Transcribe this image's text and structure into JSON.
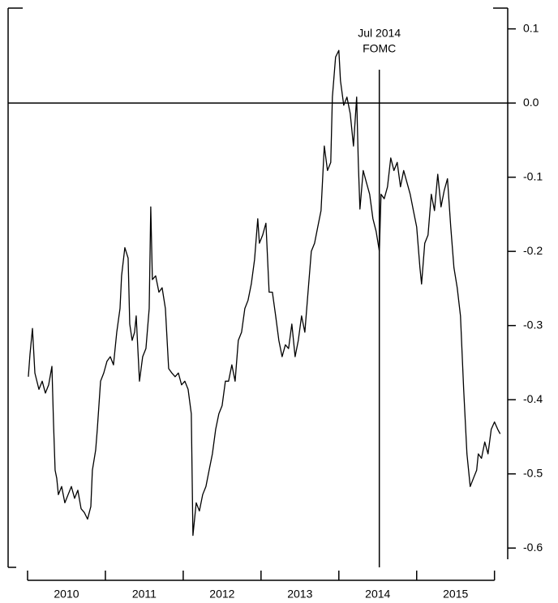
{
  "chart_data": {
    "type": "line",
    "x": [
      2010.01,
      2010.031,
      2010.063,
      2010.094,
      2010.146,
      2010.188,
      2010.229,
      2010.271,
      2010.313,
      2010.333,
      2010.354,
      2010.375,
      2010.396,
      2010.438,
      2010.479,
      2010.521,
      2010.563,
      2010.604,
      2010.646,
      2010.688,
      2010.729,
      2010.771,
      2010.813,
      2010.833,
      2010.875,
      2010.896,
      2010.938,
      2010.979,
      2011.021,
      2011.063,
      2011.104,
      2011.146,
      2011.188,
      2011.208,
      2011.25,
      2011.292,
      2011.313,
      2011.344,
      2011.375,
      2011.396,
      2011.438,
      2011.479,
      2011.521,
      2011.563,
      2011.583,
      2011.604,
      2011.646,
      2011.688,
      2011.729,
      2011.771,
      2011.813,
      2011.854,
      2011.896,
      2011.938,
      2011.979,
      2012.021,
      2012.063,
      2012.104,
      2012.125,
      2012.167,
      2012.208,
      2012.25,
      2012.292,
      2012.333,
      2012.375,
      2012.417,
      2012.458,
      2012.5,
      2012.542,
      2012.583,
      2012.625,
      2012.667,
      2012.708,
      2012.75,
      2012.792,
      2012.833,
      2012.875,
      2012.917,
      2012.958,
      2012.979,
      2013.021,
      2013.063,
      2013.104,
      2013.146,
      2013.188,
      2013.229,
      2013.271,
      2013.313,
      2013.354,
      2013.396,
      2013.438,
      2013.479,
      2013.521,
      2013.563,
      2013.604,
      2013.646,
      2013.688,
      2013.729,
      2013.771,
      2013.813,
      2013.854,
      2013.896,
      2013.917,
      2013.958,
      2014.0,
      2014.021,
      2014.063,
      2014.104,
      2014.146,
      2014.188,
      2014.229,
      2014.25,
      2014.271,
      2014.313,
      2014.354,
      2014.396,
      2014.438,
      2014.479,
      2014.521,
      2014.542,
      2014.583,
      2014.625,
      2014.667,
      2014.708,
      2014.75,
      2014.792,
      2014.833,
      2014.875,
      2014.917,
      2014.958,
      2015.0,
      2015.042,
      2015.063,
      2015.104,
      2015.146,
      2015.188,
      2015.229,
      2015.271,
      2015.313,
      2015.354,
      2015.396,
      2015.438,
      2015.479,
      2015.521,
      2015.563,
      2015.604,
      2015.646,
      2015.688,
      2015.729,
      2015.771,
      2015.792,
      2015.833,
      2015.875,
      2015.917,
      2015.958,
      2016.0,
      2016.042,
      2016.073
    ],
    "values": [
      -0.369,
      -0.339,
      -0.304,
      -0.364,
      -0.386,
      -0.375,
      -0.391,
      -0.38,
      -0.355,
      -0.43,
      -0.495,
      -0.506,
      -0.528,
      -0.517,
      -0.539,
      -0.528,
      -0.517,
      -0.533,
      -0.522,
      -0.547,
      -0.552,
      -0.561,
      -0.544,
      -0.495,
      -0.468,
      -0.44,
      -0.375,
      -0.364,
      -0.348,
      -0.342,
      -0.353,
      -0.309,
      -0.277,
      -0.233,
      -0.195,
      -0.209,
      -0.298,
      -0.32,
      -0.309,
      -0.287,
      -0.375,
      -0.342,
      -0.331,
      -0.277,
      -0.14,
      -0.238,
      -0.233,
      -0.255,
      -0.249,
      -0.277,
      -0.358,
      -0.364,
      -0.369,
      -0.364,
      -0.38,
      -0.375,
      -0.386,
      -0.419,
      -0.583,
      -0.539,
      -0.55,
      -0.528,
      -0.517,
      -0.495,
      -0.473,
      -0.44,
      -0.419,
      -0.408,
      -0.375,
      -0.375,
      -0.353,
      -0.375,
      -0.32,
      -0.309,
      -0.277,
      -0.266,
      -0.244,
      -0.211,
      -0.156,
      -0.189,
      -0.178,
      -0.162,
      -0.255,
      -0.255,
      -0.287,
      -0.32,
      -0.342,
      -0.326,
      -0.331,
      -0.298,
      -0.342,
      -0.32,
      -0.287,
      -0.309,
      -0.255,
      -0.2,
      -0.189,
      -0.167,
      -0.145,
      -0.058,
      -0.091,
      -0.08,
      0.008,
      0.062,
      0.071,
      0.03,
      -0.003,
      0.008,
      -0.014,
      -0.058,
      0.008,
      -0.08,
      -0.143,
      -0.091,
      -0.107,
      -0.123,
      -0.156,
      -0.173,
      -0.2,
      -0.123,
      -0.129,
      -0.113,
      -0.074,
      -0.091,
      -0.08,
      -0.113,
      -0.091,
      -0.107,
      -0.123,
      -0.145,
      -0.167,
      -0.222,
      -0.244,
      -0.189,
      -0.178,
      -0.123,
      -0.145,
      -0.096,
      -0.14,
      -0.118,
      -0.102,
      -0.167,
      -0.222,
      -0.249,
      -0.287,
      -0.386,
      -0.473,
      -0.517,
      -0.506,
      -0.495,
      -0.473,
      -0.479,
      -0.457,
      -0.473,
      -0.44,
      -0.43,
      -0.44,
      -0.446
    ],
    "color": "#000000",
    "xlim": [
      2009.75,
      2016.17
    ],
    "xticks": [
      2010,
      2011,
      2012,
      2013,
      2014,
      2015,
      2016
    ],
    "xtick_labels": [
      {
        "value": 2010.5,
        "label": "2010"
      },
      {
        "value": 2011.5,
        "label": "2011"
      },
      {
        "value": 2012.5,
        "label": "2012"
      },
      {
        "value": 2013.5,
        "label": "2013"
      },
      {
        "value": 2014.5,
        "label": "2014"
      },
      {
        "value": 2015.5,
        "label": "2015"
      }
    ],
    "ylim": [
      -0.626,
      0.128
    ],
    "yticks": [
      0.1,
      {
        "value": 0,
        "label": "0.0"
      },
      -0.1,
      -0.2,
      -0.3,
      -0.4,
      -0.5,
      -0.6
    ],
    "hline": 0,
    "annotations": [
      {
        "x": 2014.52,
        "text": [
          "Jul 2014",
          "FOMC"
        ]
      }
    ]
  }
}
